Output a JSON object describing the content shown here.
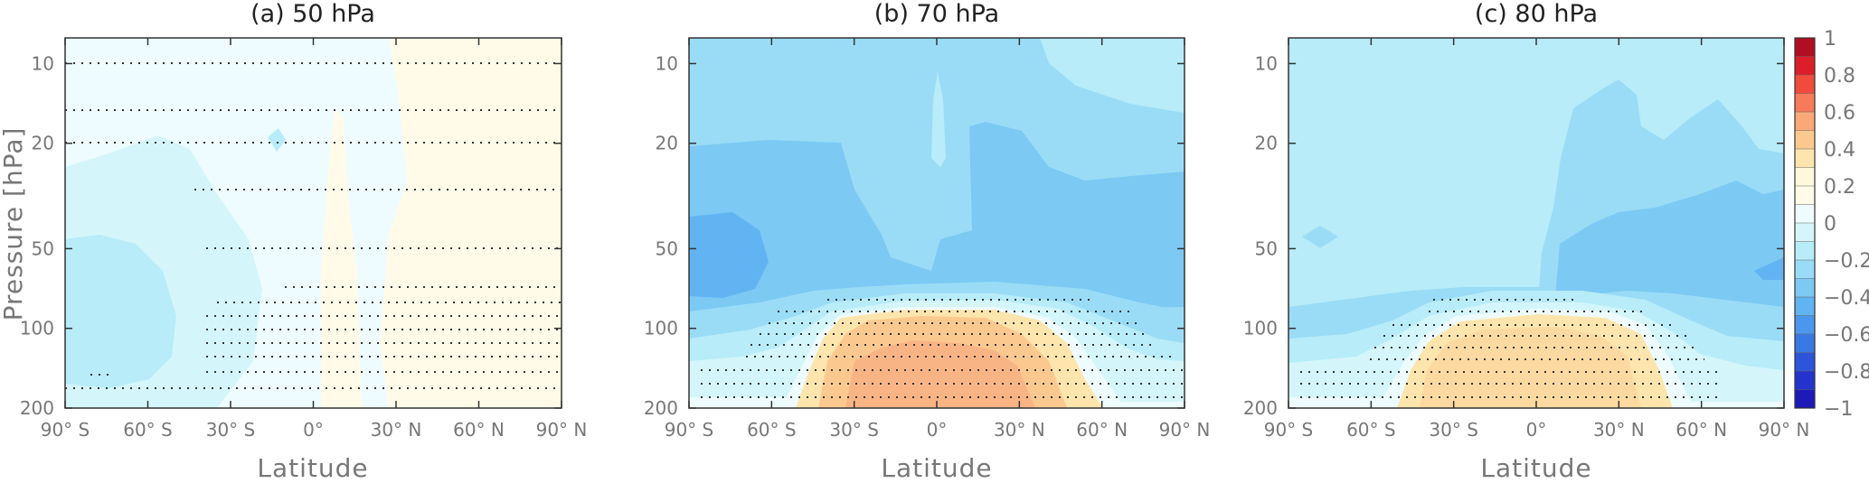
{
  "chart_data": {
    "type": "heatmap",
    "shared": {
      "xlabel": "Latitude",
      "ylabel": "Pressure [hPa]",
      "x_ticks": [
        "90° S",
        "60° S",
        "30° S",
        "0°",
        "30° N",
        "60° N",
        "90° N"
      ],
      "x_range": [
        -90,
        90
      ],
      "y_ticks": [
        "10",
        "20",
        "50",
        "100",
        "200"
      ],
      "y_range_hPa": [
        8,
        200
      ],
      "y_scale": "log",
      "stippling": "dotted lines mark regions of significance"
    },
    "colorbar": {
      "ticks": [
        "1",
        "0.8",
        "0.6",
        "0.4",
        "0.2",
        "0",
        "−0.2",
        "−0.4",
        "−0.6",
        "−0.8",
        "−1"
      ],
      "range": [
        -1,
        1
      ],
      "colors": [
        "#b20e22",
        "#dc1e2a",
        "#f04b3c",
        "#f77a5a",
        "#f9a878",
        "#fbc98f",
        "#fde5ad",
        "#fff8dc",
        "#fffbe8",
        "#eefcff",
        "#d4f6fb",
        "#b7ecf8",
        "#9adcf6",
        "#7cc9f4",
        "#61b4f1",
        "#4a97ed",
        "#3a78e4",
        "#2c55dc",
        "#2234cc",
        "#1e1ab8"
      ]
    },
    "panels": [
      {
        "title": "(a) 50 hPa",
        "summary": "near-zero anomalies throughout; weak negative (about −0.2 to −0.3) over the Southern Hemisphere, weak positive (0 to 0.1) near the equator and northern mid-latitudes",
        "value_range": [
          -0.3,
          0.1
        ]
      },
      {
        "title": "(b) 70 hPa",
        "summary": "negative anomalies (−0.2 to −0.6) above ~80 hPa, strongest near 50 hPa at 90° S; positive anomalies (up to about 0.4) below ~90 hPa between 45° S and 45° N",
        "value_range": [
          -0.6,
          0.4
        ]
      },
      {
        "title": "(c) 80 hPa",
        "summary": "weak negative anomalies (−0.2 to −0.5) above ~80 hPa; positive anomalies (up to about 0.25) below ~90 hPa between 40° S and 40° N",
        "value_range": [
          -0.5,
          0.25
        ]
      }
    ]
  }
}
